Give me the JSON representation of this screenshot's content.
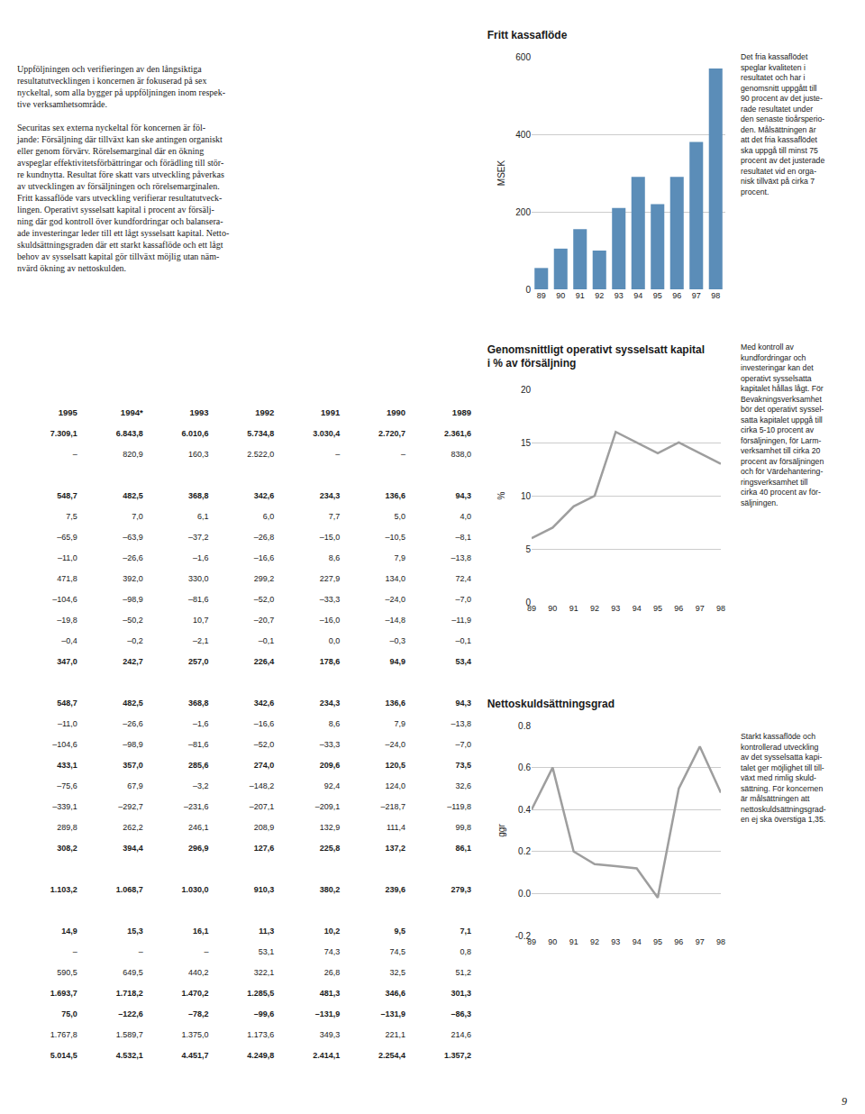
{
  "text": "Uppföljningen och verifieringen av den långsiktiga\nresultatutvecklingen i koncernen är fokuserad på sex\nnyckeltal, som alla bygger på uppföljningen inom respek-\ntive verksamhetsområde.\n\nSecuritas sex externa nyckeltal för koncernen är föl-\njande: Försäljning där tillväxt kan ske antingen organiskt\neller genom förvärv. Rörelsemarginal där en ökning\navspeglar effektivitetsförbättringar och förädling till stör-\nre kundnytta. Resultat före skatt vars utveckling påverkas\nav utvecklingen av försäljningen och rörelsemarginalen.\nFritt kassaflöde vars utveckling verifierar resultatutveck-\nlingen. Operativt sysselsatt kapital i procent av försälj-\nning där god kontroll över kundfordringar och balansera-\nade investeringar leder till ett lågt sysselsatt kapital. Netto-\nskuldsättningsgraden där ett starkt kassaflöde och ett lågt\nbehov av sysselsatt kapital gör tillväxt möjlig utan näm-\nnvärd ökning av nettoskulden.",
  "table": {
    "header": [
      "1995",
      "1994*",
      "1993",
      "1992",
      "1991",
      "1990",
      "1989"
    ],
    "rows": [
      [
        "7.309,1",
        "6.843,8",
        "6.010,6",
        "5.734,8",
        "3.030,4",
        "2.720,7",
        "2.361,6"
      ],
      [
        "–",
        "820,9",
        "160,3",
        "2.522,0",
        "–",
        "–",
        "838,0"
      ],
      null,
      [
        "548,7",
        "482,5",
        "368,8",
        "342,6",
        "234,3",
        "136,6",
        "94,3"
      ],
      [
        "7,5",
        "7,0",
        "6,1",
        "6,0",
        "7,7",
        "5,0",
        "4,0"
      ],
      [
        "–65,9",
        "–63,9",
        "–37,2",
        "–26,8",
        "–15,0",
        "–10,5",
        "–8,1"
      ],
      [
        "–11,0",
        "–26,6",
        "–1,6",
        "–16,6",
        "8,6",
        "7,9",
        "–13,8"
      ],
      [
        "471,8",
        "392,0",
        "330,0",
        "299,2",
        "227,9",
        "134,0",
        "72,4"
      ],
      [
        "–104,6",
        "–98,9",
        "–81,6",
        "–52,0",
        "–33,3",
        "–24,0",
        "–7,0"
      ],
      [
        "–19,8",
        "–50,2",
        "10,7",
        "–20,7",
        "–16,0",
        "–14,8",
        "–11,9"
      ],
      [
        "–0,4",
        "–0,2",
        "–2,1",
        "–0,1",
        "0,0",
        "–0,3",
        "–0,1"
      ],
      [
        "347,0",
        "242,7",
        "257,0",
        "226,4",
        "178,6",
        "94,9",
        "53,4"
      ],
      null,
      [
        "548,7",
        "482,5",
        "368,8",
        "342,6",
        "234,3",
        "136,6",
        "94,3"
      ],
      [
        "–11,0",
        "–26,6",
        "–1,6",
        "–16,6",
        "8,6",
        "7,9",
        "–13,8"
      ],
      [
        "–104,6",
        "–98,9",
        "–81,6",
        "–52,0",
        "–33,3",
        "–24,0",
        "–7,0"
      ],
      [
        "433,1",
        "357,0",
        "285,6",
        "274,0",
        "209,6",
        "120,5",
        "73,5"
      ],
      [
        "–75,6",
        "67,9",
        "–3,2",
        "–148,2",
        "92,4",
        "124,0",
        "32,6"
      ],
      [
        "–339,1",
        "–292,7",
        "–231,6",
        "–207,1",
        "–209,1",
        "–218,7",
        "–119,8"
      ],
      [
        "289,8",
        "262,2",
        "246,1",
        "208,9",
        "132,9",
        "111,4",
        "99,8"
      ],
      [
        "308,2",
        "394,4",
        "296,9",
        "127,6",
        "225,8",
        "137,2",
        "86,1"
      ],
      null,
      [
        "1.103,2",
        "1.068,7",
        "1.030,0",
        "910,3",
        "380,2",
        "239,6",
        "279,3"
      ],
      null,
      [
        "14,9",
        "15,3",
        "16,1",
        "11,3",
        "10,2",
        "9,5",
        "7,1"
      ],
      [
        "–",
        "–",
        "–",
        "53,1",
        "74,3",
        "74,5",
        "0,8"
      ],
      [
        "590,5",
        "649,5",
        "440,2",
        "322,1",
        "26,8",
        "32,5",
        "51,2"
      ],
      [
        "1.693,7",
        "1.718,2",
        "1.470,2",
        "1.285,5",
        "481,3",
        "346,6",
        "301,3"
      ],
      [
        "75,0",
        "–122,6",
        "–78,2",
        "–99,6",
        "–131,9",
        "–131,9",
        "–86,3"
      ],
      [
        "1.767,8",
        "1.589,7",
        "1.375,0",
        "1.173,6",
        "349,3",
        "221,1",
        "214,6"
      ],
      [
        "5.014,5",
        "4.532,1",
        "4.451,7",
        "4.249,8",
        "2.414,1",
        "2.254,4",
        "1.357,2"
      ]
    ]
  },
  "page_number": "9",
  "chart_data": [
    {
      "type": "bar",
      "title": "Fritt kassaflöde",
      "ylabel": "MSEK",
      "categories": [
        "89",
        "90",
        "91",
        "92",
        "93",
        "94",
        "95",
        "96",
        "97",
        "98"
      ],
      "values": [
        55,
        105,
        155,
        100,
        210,
        290,
        220,
        290,
        380,
        570
      ],
      "color": "#5b8db8",
      "ylim": [
        0,
        600
      ],
      "yticks": [
        0,
        200,
        400,
        600
      ],
      "grid": true,
      "annotations": [
        "Det fria kassaflödet\nspeglar kvaliteten i\nresultatet och har i\ngenomsnitt uppgått till\n90 procent av det juste-\nrade resultatet under\nden senaste tioårsperio-\nden. Målsättningen är\natt det fria kassaflödet\nska uppgå till minst 75\nprocent av det justerade\nresultatet vid en orga-\nnisk tillväxt på cirka 7\nprocent."
      ]
    },
    {
      "type": "line",
      "title": "Genomsnittligt operativt sysselsatt kapital\ni % av försäljning",
      "ylabel": "%",
      "categories": [
        "89",
        "90",
        "91",
        "92",
        "93",
        "94",
        "95",
        "96",
        "97",
        "98"
      ],
      "values": [
        6,
        7,
        9,
        10,
        16,
        15,
        14,
        15,
        14,
        13
      ],
      "color": "#9e9e9e",
      "ylim": [
        0,
        20
      ],
      "yticks": [
        0,
        5,
        10,
        15,
        20
      ],
      "grid": true,
      "annotations": [
        "Med kontroll av\nkundfordringar och\ninvesteringar kan det\noperativt sysselsatta\nkapitalet hållas lågt. För\nBevakningsverksamhet\nbör det operativt syssel-\nsatta kapitalet uppgå till\ncirka 5-10 procent av\nförsäljningen, för Larm-\nverksamhet till cirka 20\nprocent av försäljningen\noch för Värdehantering-\nringsverksamhet till\ncirka 40 procent av för-\nsäljningen."
      ]
    },
    {
      "type": "line",
      "title": "Nettoskuldsättningsgrad",
      "ylabel": "ggr",
      "categories": [
        "89",
        "90",
        "91",
        "92",
        "93",
        "94",
        "95",
        "96",
        "97",
        "98"
      ],
      "values": [
        0.4,
        0.6,
        0.2,
        0.14,
        0.13,
        0.12,
        -0.02,
        0.5,
        0.7,
        0.48
      ],
      "color": "#9e9e9e",
      "ylim": [
        -0.2,
        0.8
      ],
      "yticks": [
        -0.2,
        {
          "value": 0,
          "label": "0.0"
        },
        0.2,
        0.4,
        0.6,
        0.8
      ],
      "grid": true,
      "annotations": [
        "Starkt kassaflöde och\nkontrollerad utveckling\nav det sysselsatta kapi-\ntalet ger möjlighet till till-\nväxt med rimlig skuld-\nsättning. För koncernen\när målsättningen att\nnettoskuldsättningsgrad-\nen ej ska överstiga 1,35."
      ]
    }
  ]
}
